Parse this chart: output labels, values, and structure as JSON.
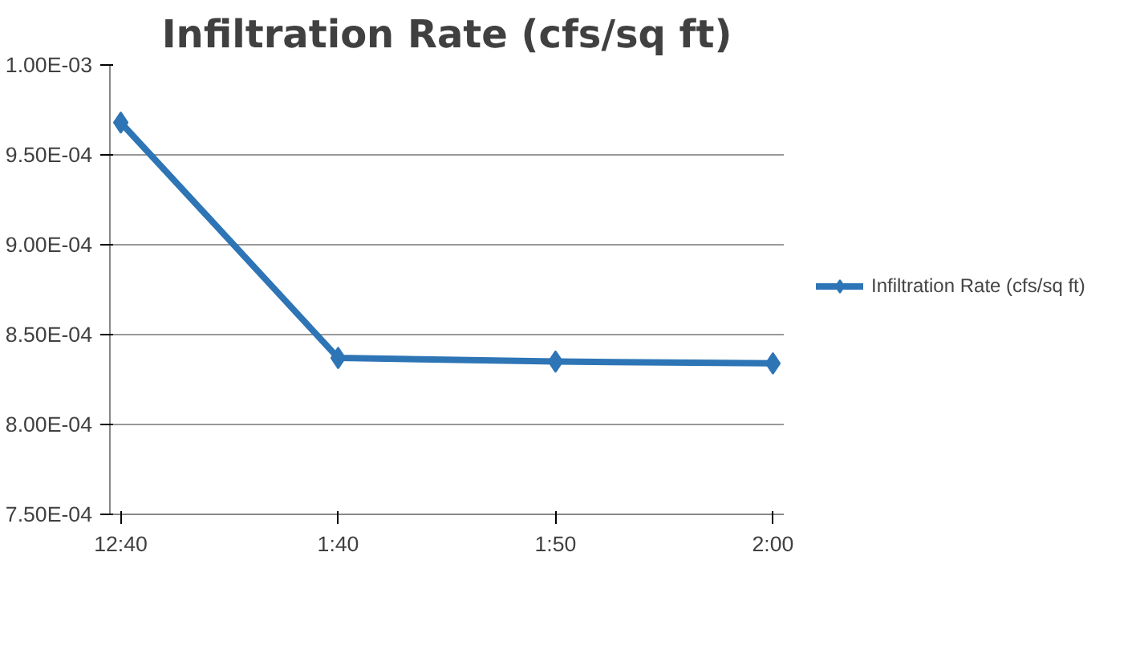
{
  "chart_data": {
    "type": "line",
    "title": "Infiltration Rate (cfs/sq ft)",
    "categories": [
      "12:40",
      "1:40",
      "1:50",
      "2:00"
    ],
    "series": [
      {
        "name": "Infiltration Rate (cfs/sq ft)",
        "color": "#2e75b6",
        "values": [
          0.000968,
          0.000837,
          0.000835,
          0.000834
        ]
      }
    ],
    "ylim": [
      0.00075,
      0.001
    ],
    "yticks": [
      {
        "value": 0.00075,
        "label": "7.50E-04"
      },
      {
        "value": 0.0008,
        "label": "8.00E-04"
      },
      {
        "value": 0.00085,
        "label": "8.50E-04"
      },
      {
        "value": 0.0009,
        "label": "9.00E-04"
      },
      {
        "value": 0.00095,
        "label": "9.50E-04"
      },
      {
        "value": 0.001,
        "label": "1.00E-03"
      }
    ],
    "grid": "y",
    "legend": "right",
    "marker": "diamond",
    "line_style": "solid"
  }
}
